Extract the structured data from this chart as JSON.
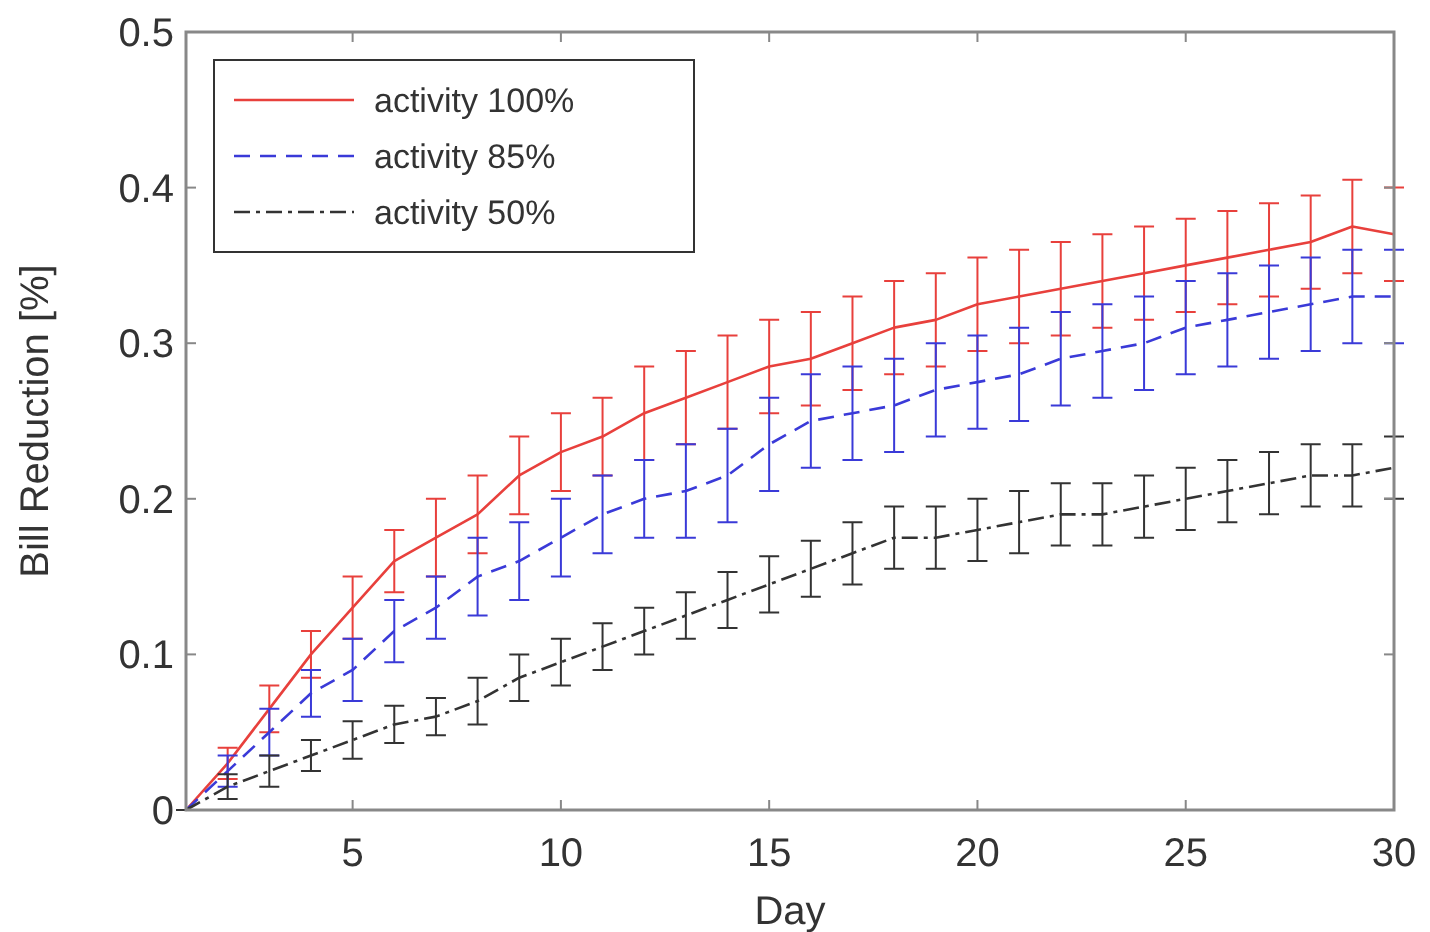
{
  "chart_data": {
    "type": "line",
    "xlabel": "Day",
    "ylabel": "Bill Reduction [%]",
    "x": [
      1,
      2,
      3,
      4,
      5,
      6,
      7,
      8,
      9,
      10,
      11,
      12,
      13,
      14,
      15,
      16,
      17,
      18,
      19,
      20,
      21,
      22,
      23,
      24,
      25,
      26,
      27,
      28,
      29,
      30
    ],
    "xlim": [
      1,
      30
    ],
    "xticks": [
      5,
      10,
      15,
      20,
      25,
      30
    ],
    "ylim": [
      0,
      0.5
    ],
    "yticks": [
      0,
      0.1,
      0.2,
      0.3,
      0.4,
      0.5
    ],
    "grid": false,
    "legend": "top left",
    "series": [
      {
        "name": "activity 100%",
        "color": "#e8403c",
        "line_style": "solid",
        "values": [
          0,
          0.03,
          0.065,
          0.1,
          0.13,
          0.16,
          0.175,
          0.19,
          0.215,
          0.23,
          0.24,
          0.255,
          0.265,
          0.275,
          0.285,
          0.29,
          0.3,
          0.31,
          0.315,
          0.325,
          0.33,
          0.335,
          0.34,
          0.345,
          0.35,
          0.355,
          0.36,
          0.365,
          0.375,
          0.37
        ],
        "errors": [
          0,
          0.01,
          0.015,
          0.015,
          0.02,
          0.02,
          0.025,
          0.025,
          0.025,
          0.025,
          0.025,
          0.03,
          0.03,
          0.03,
          0.03,
          0.03,
          0.03,
          0.03,
          0.03,
          0.03,
          0.03,
          0.03,
          0.03,
          0.03,
          0.03,
          0.03,
          0.03,
          0.03,
          0.03,
          0.03
        ]
      },
      {
        "name": "activity 85%",
        "color": "#3a3ad8",
        "line_style": "dashed",
        "values": [
          0,
          0.025,
          0.05,
          0.075,
          0.09,
          0.115,
          0.13,
          0.15,
          0.16,
          0.175,
          0.19,
          0.2,
          0.205,
          0.215,
          0.235,
          0.25,
          0.255,
          0.26,
          0.27,
          0.275,
          0.28,
          0.29,
          0.295,
          0.3,
          0.31,
          0.315,
          0.32,
          0.325,
          0.33,
          0.33
        ],
        "errors": [
          0,
          0.01,
          0.015,
          0.015,
          0.02,
          0.02,
          0.02,
          0.025,
          0.025,
          0.025,
          0.025,
          0.025,
          0.03,
          0.03,
          0.03,
          0.03,
          0.03,
          0.03,
          0.03,
          0.03,
          0.03,
          0.03,
          0.03,
          0.03,
          0.03,
          0.03,
          0.03,
          0.03,
          0.03,
          0.03
        ]
      },
      {
        "name": "activity 50%",
        "color": "#333333",
        "line_style": "dashdot",
        "values": [
          0,
          0.015,
          0.025,
          0.035,
          0.045,
          0.055,
          0.06,
          0.07,
          0.085,
          0.095,
          0.105,
          0.115,
          0.125,
          0.135,
          0.145,
          0.155,
          0.165,
          0.175,
          0.175,
          0.18,
          0.185,
          0.19,
          0.19,
          0.195,
          0.2,
          0.205,
          0.21,
          0.215,
          0.215,
          0.22
        ],
        "errors": [
          0,
          0.008,
          0.01,
          0.01,
          0.012,
          0.012,
          0.012,
          0.015,
          0.015,
          0.015,
          0.015,
          0.015,
          0.015,
          0.018,
          0.018,
          0.018,
          0.02,
          0.02,
          0.02,
          0.02,
          0.02,
          0.02,
          0.02,
          0.02,
          0.02,
          0.02,
          0.02,
          0.02,
          0.02,
          0.02
        ]
      }
    ]
  }
}
